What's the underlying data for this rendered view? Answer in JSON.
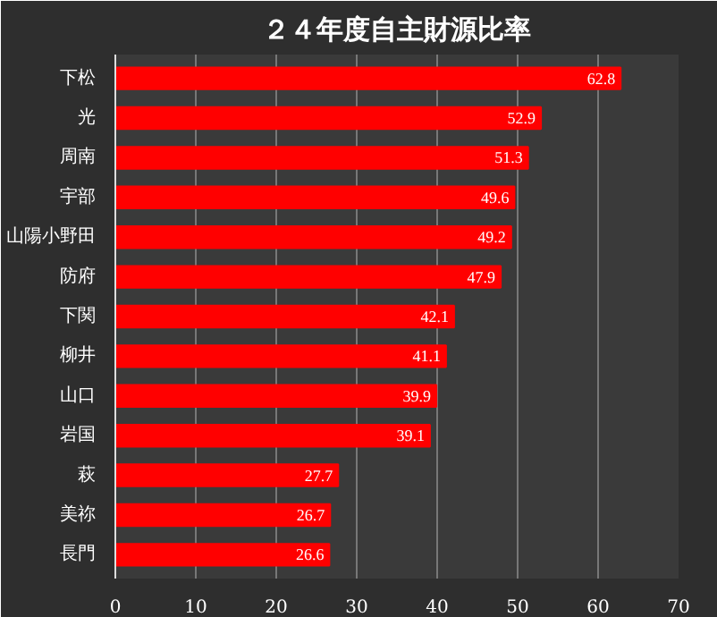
{
  "chart_data": {
    "type": "bar",
    "orientation": "horizontal",
    "title": "２４年度自主財源比率",
    "categories": [
      "下松",
      "光",
      "周南",
      "宇部",
      "山陽小野田",
      "防府",
      "下関",
      "柳井",
      "山口",
      "岩国",
      "萩",
      "美祢",
      "長門"
    ],
    "values": [
      62.8,
      52.9,
      51.3,
      49.6,
      49.2,
      47.9,
      42.1,
      41.1,
      39.9,
      39.1,
      27.7,
      26.7,
      26.6
    ],
    "color": "#ff0000",
    "xlim": [
      0,
      70
    ],
    "xticks": [
      0,
      10,
      20,
      30,
      40,
      50,
      60,
      70
    ],
    "grid": "x",
    "data_labels": true
  }
}
